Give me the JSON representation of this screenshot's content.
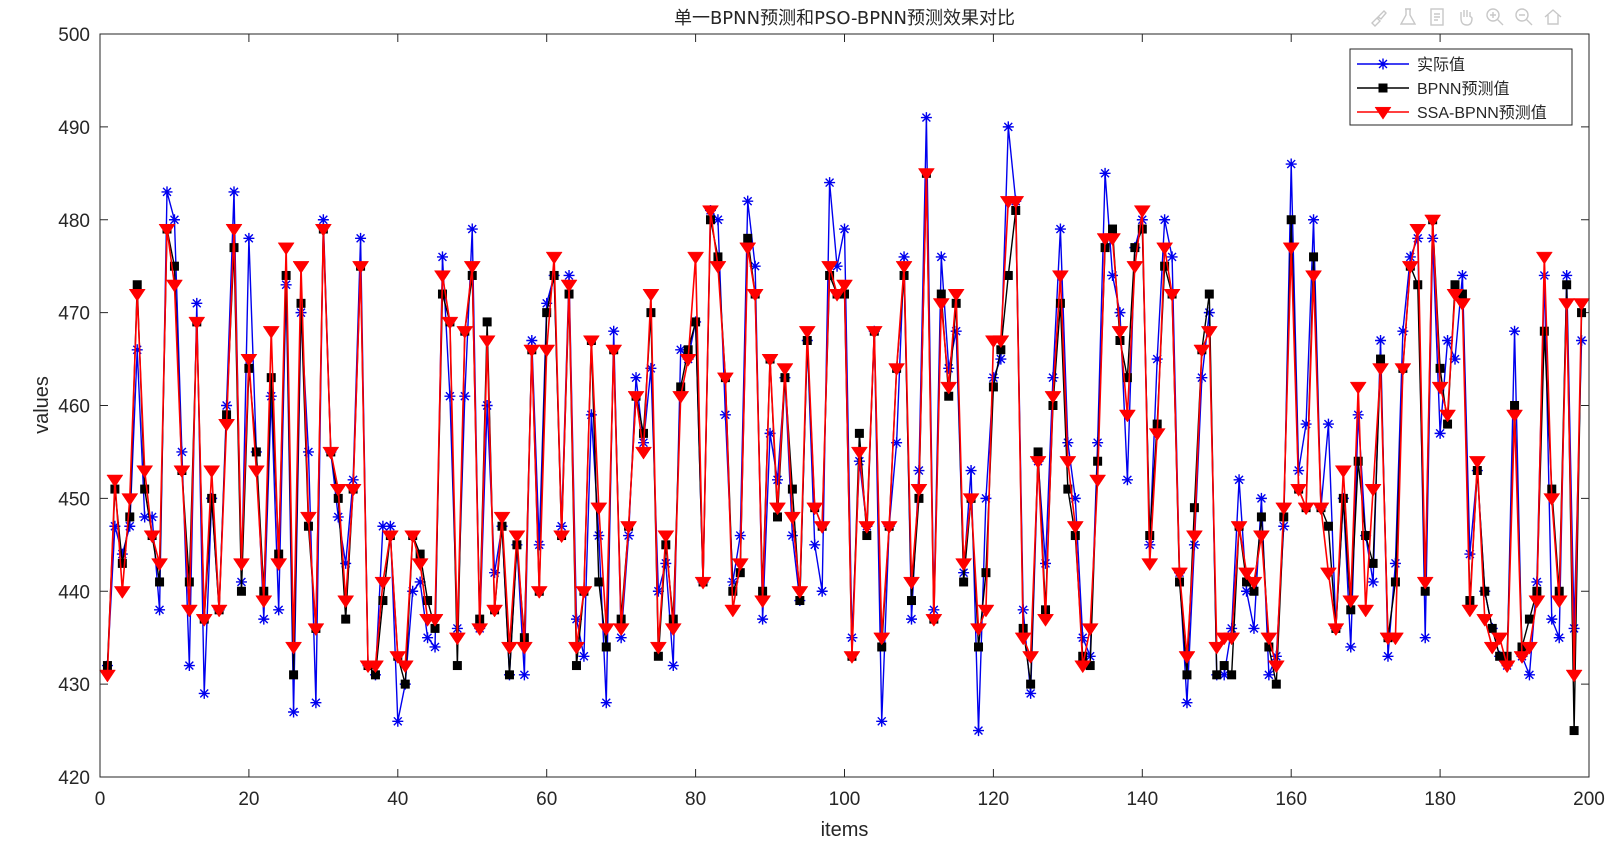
{
  "chart_data": {
    "type": "line",
    "title": "单一BPNN预测和PSO-BPNN预测效果对比",
    "xlabel": "items",
    "ylabel": "values",
    "xlim": [
      0,
      200
    ],
    "ylim": [
      420,
      500
    ],
    "xticks": [
      0,
      20,
      40,
      60,
      80,
      100,
      120,
      140,
      160,
      180,
      200
    ],
    "yticks": [
      420,
      430,
      440,
      450,
      460,
      470,
      480,
      490,
      500
    ],
    "legend_position": "top-right",
    "series": [
      {
        "name": "实际值",
        "color": "#0000ee",
        "marker": "asterisk"
      },
      {
        "name": "BPNN预测值",
        "color": "#000000",
        "marker": "square"
      },
      {
        "name": "SSA-BPNN预测值",
        "color": "#ff0000",
        "marker": "triangle-down"
      }
    ],
    "actual": [
      432,
      447,
      444,
      447,
      466,
      448,
      448,
      438,
      483,
      480,
      455,
      432,
      471,
      429,
      450,
      438,
      460,
      483,
      441,
      478,
      455,
      437,
      461,
      438,
      473,
      427,
      470,
      455,
      428,
      480,
      455,
      448,
      443,
      452,
      478,
      432,
      431,
      447,
      447,
      426,
      430,
      440,
      441,
      435,
      434,
      476,
      461,
      436,
      461,
      479,
      436,
      460,
      442,
      447,
      431,
      445,
      431,
      467,
      445,
      471,
      474,
      447,
      474,
      437,
      433,
      459,
      446,
      428,
      468,
      435,
      446,
      463,
      456,
      464,
      440,
      443,
      432,
      466,
      465,
      469,
      441,
      481,
      480,
      459,
      441,
      446,
      482,
      475,
      437,
      457,
      452,
      463,
      446,
      439,
      467,
      445,
      440,
      484,
      475,
      479,
      435,
      454,
      447,
      468,
      426,
      447,
      456,
      476,
      437,
      453,
      491,
      438,
      476,
      464,
      468,
      442,
      453,
      425,
      450,
      463,
      465,
      490,
      482,
      438,
      429,
      454,
      443,
      463,
      479,
      456,
      450,
      435,
      433,
      456,
      485,
      474,
      470,
      452,
      477,
      480,
      445,
      465,
      480,
      476,
      442,
      428,
      445,
      463,
      470,
      431,
      431,
      436,
      452,
      440,
      436,
      450,
      431,
      433,
      447,
      486,
      453,
      458,
      480,
      449,
      458,
      436,
      450,
      434,
      459,
      446,
      441,
      467,
      433,
      443,
      468,
      476,
      478,
      435,
      478,
      457,
      467,
      465,
      474,
      444,
      453,
      440,
      436,
      433,
      432,
      468,
      433,
      431,
      441,
      474,
      437,
      435,
      474,
      436,
      467
    ],
    "bpnn": [
      432,
      451,
      443,
      448,
      473,
      451,
      446,
      441,
      479,
      475,
      453,
      441,
      469,
      437,
      450,
      438,
      459,
      477,
      440,
      464,
      455,
      440,
      463,
      444,
      474,
      431,
      471,
      447,
      436,
      479,
      455,
      450,
      437,
      451,
      475,
      432,
      431,
      439,
      446,
      433,
      430,
      446,
      444,
      439,
      436,
      472,
      469,
      432,
      468,
      474,
      437,
      469,
      438,
      447,
      431,
      445,
      435,
      466,
      440,
      470,
      474,
      446,
      472,
      432,
      440,
      467,
      441,
      434,
      466,
      437,
      447,
      461,
      457,
      470,
      433,
      445,
      437,
      462,
      466,
      469,
      441,
      480,
      476,
      463,
      440,
      442,
      478,
      472,
      440,
      465,
      448,
      463,
      451,
      439,
      467,
      449,
      447,
      474,
      472,
      472,
      433,
      457,
      446,
      468,
      434,
      447,
      464,
      474,
      439,
      450,
      485,
      437,
      472,
      461,
      471,
      441,
      450,
      434,
      442,
      462,
      466,
      474,
      481,
      436,
      430,
      455,
      438,
      460,
      471,
      451,
      446,
      433,
      432,
      454,
      477,
      479,
      467,
      463,
      477,
      479,
      446,
      458,
      475,
      472,
      441,
      431,
      449,
      466,
      472,
      431,
      432,
      431,
      447,
      441,
      440,
      448,
      434,
      430,
      448,
      480,
      451,
      449,
      476,
      449,
      447,
      436,
      450,
      438,
      454,
      446,
      443,
      465,
      435,
      441,
      464,
      475,
      473,
      440,
      480,
      464,
      458,
      473,
      472,
      439,
      453,
      440,
      436,
      433,
      433,
      460,
      434,
      437,
      440,
      468,
      451,
      440,
      473,
      425,
      470
    ],
    "ssa": [
      431,
      452,
      440,
      450,
      472,
      453,
      446,
      443,
      479,
      473,
      453,
      438,
      469,
      437,
      453,
      438,
      458,
      479,
      443,
      465,
      453,
      439,
      468,
      443,
      477,
      434,
      475,
      448,
      436,
      479,
      455,
      451,
      439,
      451,
      475,
      432,
      432,
      441,
      446,
      433,
      432,
      446,
      443,
      437,
      437,
      474,
      469,
      435,
      468,
      475,
      436,
      467,
      438,
      448,
      434,
      446,
      434,
      466,
      440,
      466,
      476,
      446,
      473,
      434,
      440,
      467,
      449,
      436,
      466,
      436,
      447,
      461,
      455,
      472,
      434,
      446,
      436,
      461,
      465,
      476,
      441,
      481,
      475,
      463,
      438,
      443,
      477,
      472,
      439,
      465,
      449,
      464,
      448,
      440,
      468,
      449,
      447,
      475,
      472,
      473,
      433,
      455,
      447,
      468,
      435,
      447,
      464,
      475,
      441,
      451,
      485,
      437,
      471,
      462,
      472,
      443,
      450,
      436,
      438,
      467,
      467,
      482,
      482,
      435,
      433,
      454,
      437,
      461,
      474,
      454,
      447,
      432,
      436,
      452,
      478,
      478,
      468,
      459,
      475,
      481,
      443,
      457,
      477,
      472,
      442,
      433,
      446,
      466,
      468,
      434,
      435,
      435,
      447,
      442,
      441,
      446,
      435,
      432,
      449,
      477,
      451,
      449,
      474,
      449,
      442,
      436,
      453,
      439,
      462,
      438,
      451,
      464,
      435,
      435,
      464,
      475,
      479,
      441,
      480,
      462,
      459,
      472,
      471,
      438,
      454,
      437,
      434,
      435,
      432,
      459,
      433,
      434,
      439,
      476,
      450,
      439,
      471,
      431,
      471
    ]
  }
}
